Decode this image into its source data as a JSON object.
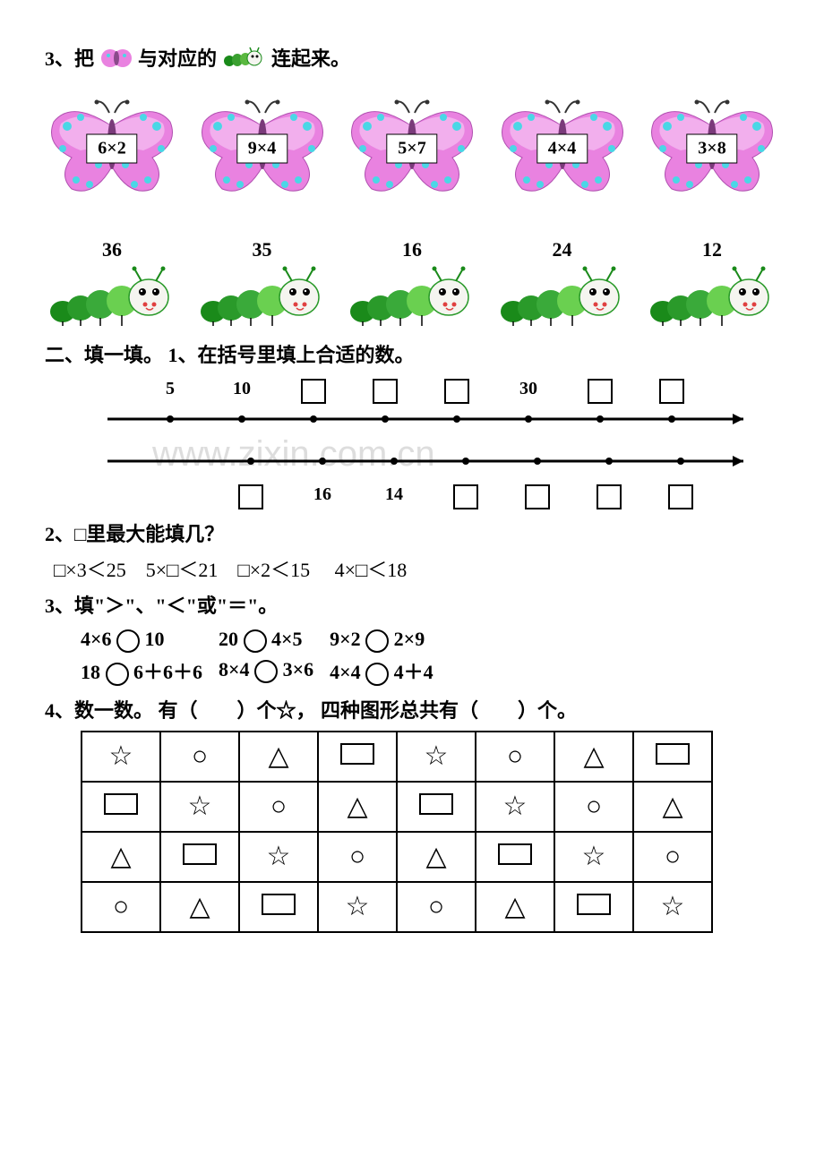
{
  "q3": {
    "prefix": "3、把",
    "mid": "与对应的",
    "suffix": "连起来。",
    "butterflies": [
      "6×2",
      "9×4",
      "5×7",
      "4×4",
      "3×8"
    ],
    "caterpillars": [
      "36",
      "35",
      "16",
      "24",
      "12"
    ],
    "colors": {
      "butterfly_fill": "#e982e0",
      "butterfly_light": "#f5c2f2",
      "butterfly_spots": "#4ad7e6",
      "caterpillar_dark": "#1a8a1a",
      "caterpillar_light": "#6ad050",
      "caterpillar_face": "#f5f5f0"
    }
  },
  "section2": {
    "title": "二、填一填。  1、在括号里填上合适的数。",
    "line1": {
      "positions": [
        80,
        160,
        240,
        320,
        400,
        480,
        560,
        640
      ],
      "labels": [
        "5",
        "10",
        "□",
        "□",
        "□",
        "30",
        "□",
        "□"
      ]
    },
    "line2": {
      "positions": [
        170,
        250,
        330,
        410,
        490,
        570,
        650
      ],
      "labels": [
        "□",
        "16",
        "14",
        "□",
        "□",
        "□",
        "□"
      ]
    }
  },
  "q2_2": {
    "title": "2、□里最大能填几？",
    "items": [
      "□×3＜25",
      "5×□＜21",
      "□×2＜15",
      "4×□＜18"
    ]
  },
  "q2_3": {
    "title": "3、填\"＞\"、\"＜\"或\"＝\"。",
    "rows": [
      [
        "4×6 ○ 10",
        "20 ○ 4×5",
        "9×2 ○ 2×9"
      ],
      [
        "18 ○ 6＋6＋6",
        "8×4 ○ 3×6",
        "4×4 ○ 4＋4"
      ]
    ]
  },
  "q2_4": {
    "title": "4、数一数。  有（　　）个☆，  四种图形总共有（　　）个。",
    "grid": [
      [
        "star",
        "circle",
        "triangle",
        "rect",
        "star",
        "circle",
        "triangle",
        "rect"
      ],
      [
        "rect",
        "star",
        "circle",
        "triangle",
        "rect",
        "star",
        "circle",
        "triangle"
      ],
      [
        "triangle",
        "rect",
        "star",
        "circle",
        "triangle",
        "rect",
        "star",
        "circle"
      ],
      [
        "circle",
        "triangle",
        "rect",
        "star",
        "circle",
        "triangle",
        "rect",
        "star"
      ]
    ]
  },
  "watermark": "www.zixin.com.cn"
}
